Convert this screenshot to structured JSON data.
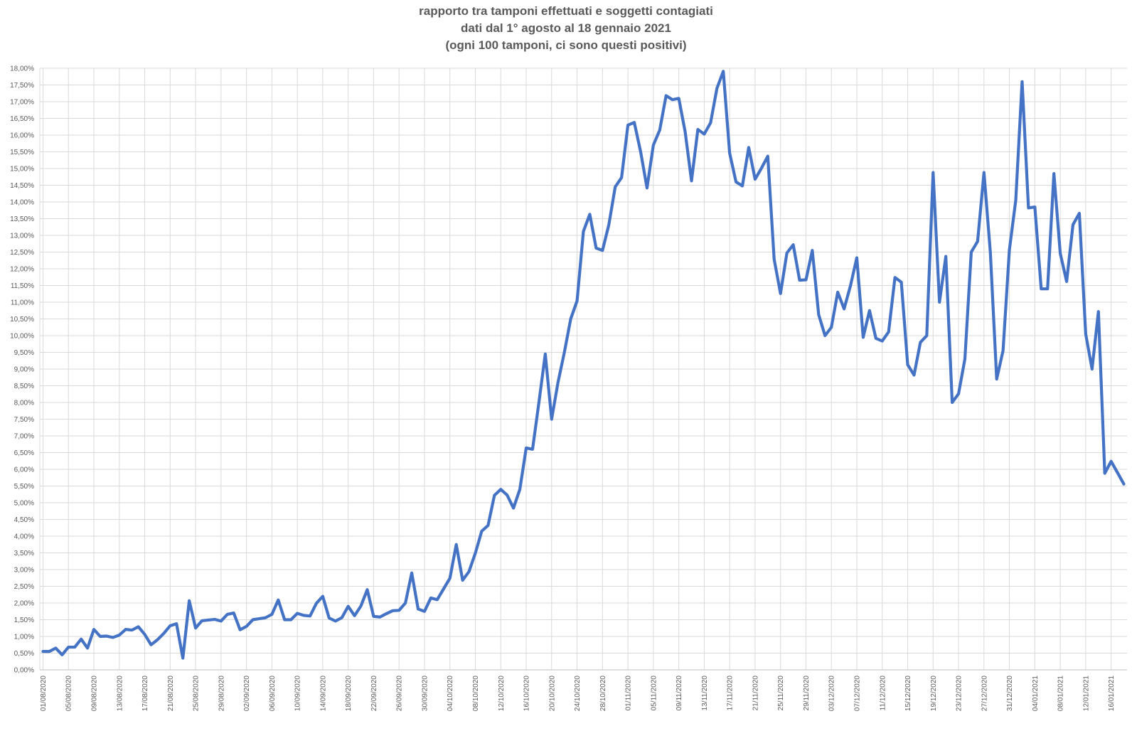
{
  "chart_data": {
    "type": "line",
    "title_lines": [
      "rapporto tra tamponi effettuati e soggetti contagiati",
      "dati dal 1° agosto al 18 gennaio 2021",
      "(ogni 100 tamponi, ci sono questi positivi)"
    ],
    "start_date": "2020-08-01",
    "end_date": "2021-01-18",
    "ylim": [
      0,
      18
    ],
    "y_tick_labels": [
      "0,00%",
      "0,50%",
      "1,00%",
      "1,50%",
      "2,00%",
      "2,50%",
      "3,00%",
      "3,50%",
      "4,00%",
      "4,50%",
      "5,00%",
      "5,50%",
      "6,00%",
      "6,50%",
      "7,00%",
      "7,50%",
      "8,00%",
      "8,50%",
      "9,00%",
      "9,50%",
      "10,00%",
      "10,50%",
      "11,00%",
      "11,50%",
      "12,00%",
      "12,50%",
      "13,00%",
      "13,50%",
      "14,00%",
      "14,50%",
      "15,00%",
      "15,50%",
      "16,00%",
      "16,50%",
      "17,00%",
      "17,50%",
      "18,00%"
    ],
    "x_tick_labels": [
      "01/08/2020",
      "05/08/2020",
      "09/08/2020",
      "13/08/2020",
      "17/08/2020",
      "21/08/2020",
      "25/08/2020",
      "29/08/2020",
      "02/09/2020",
      "06/09/2020",
      "10/09/2020",
      "14/09/2020",
      "18/09/2020",
      "22/09/2020",
      "26/09/2020",
      "30/09/2020",
      "04/10/2020",
      "08/10/2020",
      "12/10/2020",
      "16/10/2020",
      "20/10/2020",
      "24/10/2020",
      "28/10/2020",
      "01/11/2020",
      "05/11/2020",
      "09/11/2020",
      "13/11/2020",
      "17/11/2020",
      "21/11/2020",
      "25/11/2020",
      "29/11/2020",
      "03/12/2020",
      "07/12/2020",
      "11/12/2020",
      "15/12/2020",
      "19/12/2020",
      "23/12/2020",
      "27/12/2020",
      "31/12/2020",
      "04/01/2021",
      "08/01/2021",
      "12/01/2021",
      "16/01/2021"
    ],
    "grid": true,
    "colors": {
      "line": "#4472C4",
      "grid": "#D9D9D9",
      "text": "#595959"
    },
    "values": [
      0.55,
      0.55,
      0.65,
      0.45,
      0.68,
      0.68,
      0.92,
      0.65,
      1.21,
      1.0,
      1.01,
      0.97,
      1.04,
      1.21,
      1.19,
      1.29,
      1.06,
      0.75,
      0.9,
      1.09,
      1.32,
      1.38,
      0.35,
      2.07,
      1.25,
      1.47,
      1.49,
      1.51,
      1.46,
      1.66,
      1.7,
      1.2,
      1.3,
      1.5,
      1.53,
      1.56,
      1.66,
      2.09,
      1.5,
      1.5,
      1.69,
      1.63,
      1.61,
      1.99,
      2.2,
      1.55,
      1.46,
      1.56,
      1.9,
      1.62,
      1.91,
      2.4,
      1.6,
      1.58,
      1.68,
      1.77,
      1.78,
      2.0,
      2.9,
      1.82,
      1.75,
      2.15,
      2.1,
      2.42,
      2.74,
      3.75,
      2.68,
      2.94,
      3.49,
      4.15,
      4.32,
      5.22,
      5.4,
      5.23,
      4.84,
      5.4,
      6.64,
      6.6,
      8.0,
      9.45,
      7.5,
      8.6,
      9.5,
      10.5,
      11.04,
      13.12,
      13.63,
      12.62,
      12.55,
      13.32,
      14.45,
      14.73,
      16.3,
      16.38,
      15.5,
      14.42,
      15.7,
      16.15,
      17.18,
      17.06,
      17.1,
      16.1,
      14.63,
      16.17,
      16.03,
      16.37,
      17.4,
      17.91,
      15.46,
      14.6,
      14.48,
      15.63,
      14.68,
      15.01,
      15.37,
      12.28,
      11.26,
      12.47,
      12.72,
      11.66,
      11.67,
      12.55,
      10.63,
      10.0,
      10.25,
      11.3,
      10.8,
      11.49,
      12.33,
      9.95,
      10.75,
      9.92,
      9.84,
      10.11,
      11.74,
      11.6,
      9.13,
      8.82,
      9.8,
      10.0,
      14.88,
      11.0,
      12.37,
      8.0,
      8.26,
      9.3,
      12.5,
      12.82,
      14.88,
      12.5,
      8.7,
      9.55,
      12.57,
      14.05,
      17.6,
      13.82,
      13.85,
      11.4,
      11.4,
      14.85,
      12.46,
      11.62,
      13.32,
      13.66,
      10.05,
      9.0,
      10.72,
      5.88,
      6.24,
      5.9,
      5.56
    ]
  }
}
